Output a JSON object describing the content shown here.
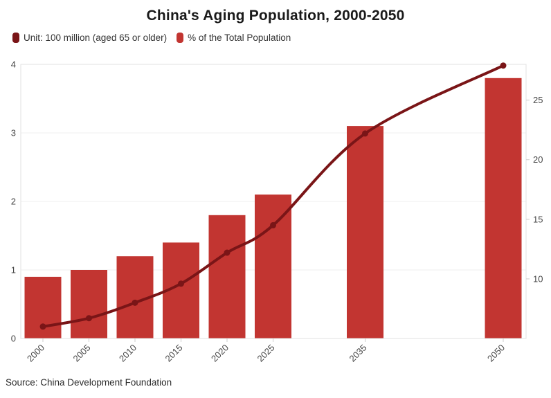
{
  "title": "China's Aging Population, 2000-2050",
  "legend": [
    {
      "label": "Unit: 100 million (aged 65 or older)",
      "color": "#7a1517"
    },
    {
      "label": "% of the Total Population",
      "color": "#c23531"
    }
  ],
  "source": "Source: China Development Foundation",
  "colors": {
    "bar": "#c23531",
    "line": "#7a1517",
    "grid": "#efefef",
    "plot_border": "#e2e2e2",
    "tick": "#cccccc",
    "axis_text": "#474747"
  },
  "chart_data": {
    "type": "bar",
    "title": "China's Aging Population, 2000-2050",
    "categories": [
      "2000",
      "2005",
      "2010",
      "2015",
      "2020",
      "2025",
      "2035",
      "2050"
    ],
    "years": [
      2000,
      2005,
      2010,
      2015,
      2020,
      2025,
      2035,
      2050
    ],
    "series": [
      {
        "name": "Unit: 100 million (aged 65 or older)",
        "type": "bar",
        "axis": "left",
        "values": [
          0.9,
          1.0,
          1.2,
          1.4,
          1.8,
          2.1,
          3.1,
          3.8
        ]
      },
      {
        "name": "% of the Total Population",
        "type": "line",
        "axis": "right",
        "smooth": true,
        "values": [
          6.0,
          6.7,
          8.0,
          9.6,
          12.2,
          14.5,
          22.2,
          27.9
        ]
      }
    ],
    "left_axis": {
      "min": 0,
      "max": 4,
      "ticks": [
        0,
        1,
        2,
        3,
        4
      ],
      "tick_labels": [
        "0",
        "1",
        "2",
        "3",
        "4"
      ]
    },
    "right_axis": {
      "min": 5,
      "max": 28,
      "ticks": [
        10,
        15,
        20,
        25
      ],
      "tick_labels": [
        "10",
        "15",
        "20",
        "25"
      ]
    },
    "x_axis": {
      "proportional_time_scale": true,
      "label_rotation_deg": -45
    },
    "grid": true,
    "legend_position": "top-left",
    "xlabel": "",
    "ylabel_left": "100 million (aged 65 or older)",
    "ylabel_right": "% of the Total Population"
  }
}
